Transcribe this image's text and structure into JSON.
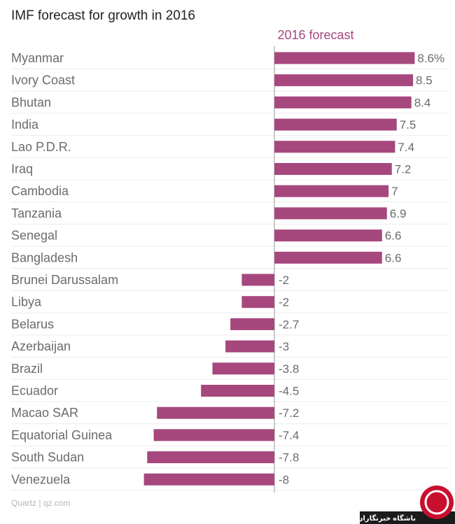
{
  "chart_data": {
    "type": "bar",
    "orientation": "horizontal",
    "title": "IMF forecast for growth in 2016",
    "series": [
      {
        "name": "2016 forecast",
        "color": "#a6487d",
        "values": [
          8.6,
          8.5,
          8.4,
          7.5,
          7.4,
          7.2,
          7,
          6.9,
          6.6,
          6.6,
          -2,
          -2,
          -2.7,
          -3,
          -3.8,
          -4.5,
          -7.2,
          -7.4,
          -7.8,
          -8
        ]
      }
    ],
    "categories": [
      "Myanmar",
      "Ivory Coast",
      "Bhutan",
      "India",
      "Lao P.D.R.",
      "Iraq",
      "Cambodia",
      "Tanzania",
      "Senegal",
      "Bangladesh",
      "Brunei Darussalam",
      "Libya",
      "Belarus",
      "Azerbaijan",
      "Brazil",
      "Ecuador",
      "Macao SAR",
      "Equatorial Guinea",
      "South Sudan",
      "Venezuela"
    ],
    "value_labels": [
      "8.6%",
      "8.5",
      "8.4",
      "7.5",
      "7.4",
      "7.2",
      "7",
      "6.9",
      "6.6",
      "6.6",
      "-2",
      "-2",
      "-2.7",
      "-3",
      "-3.8",
      "-4.5",
      "-7.2",
      "-7.4",
      "-7.8",
      "-8"
    ],
    "xlim": [
      -8,
      8.6
    ],
    "grid": true,
    "source": "Quartz | qz.com"
  },
  "watermark": {
    "text": "باشگاه خبرنگاران",
    "colors": {
      "bg": "#1b1b1b",
      "accent": "#c8102e"
    }
  }
}
